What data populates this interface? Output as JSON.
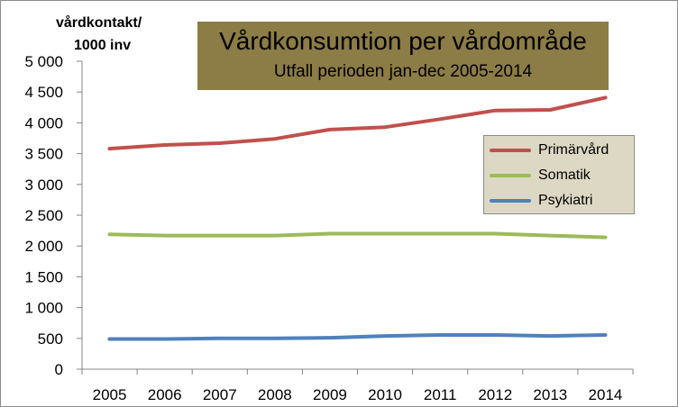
{
  "chart_data": {
    "type": "line",
    "title": "Vårdkonsumtion per vårdområde",
    "subtitle": "Utfall perioden jan-dec 2005-2014",
    "ylabel_line1": "vårdkontakt/",
    "ylabel_line2": "1000 inv",
    "xlabel": "",
    "ylim": [
      0,
      5000
    ],
    "ytick_values": [
      0,
      500,
      1000,
      1500,
      2000,
      2500,
      3000,
      3500,
      4000,
      4500,
      5000
    ],
    "ytick_labels": [
      "0",
      "500",
      "1 000",
      "1 500",
      "2 000",
      "2 500",
      "3 000",
      "3 500",
      "4 000",
      "4 500",
      "5 000"
    ],
    "categories": [
      "2005",
      "2006",
      "2007",
      "2008",
      "2009",
      "2010",
      "2011",
      "2012",
      "2013",
      "2014"
    ],
    "grid": false,
    "legend_position": "right",
    "series": [
      {
        "name": "Primärvård",
        "color": "#c0504d",
        "values": [
          3580,
          3640,
          3670,
          3740,
          3890,
          3930,
          4060,
          4200,
          4210,
          4410
        ]
      },
      {
        "name": "Somatik",
        "color": "#9bbb59",
        "values": [
          2190,
          2170,
          2170,
          2170,
          2200,
          2200,
          2200,
          2200,
          2170,
          2140
        ]
      },
      {
        "name": "Psykiatri",
        "color": "#4f81bd",
        "values": [
          490,
          490,
          500,
          500,
          510,
          540,
          555,
          555,
          540,
          555
        ]
      }
    ]
  },
  "colors": {
    "title_box": "#8c7c45",
    "legend_box": "#ddd8c3",
    "axis": "#868686"
  }
}
